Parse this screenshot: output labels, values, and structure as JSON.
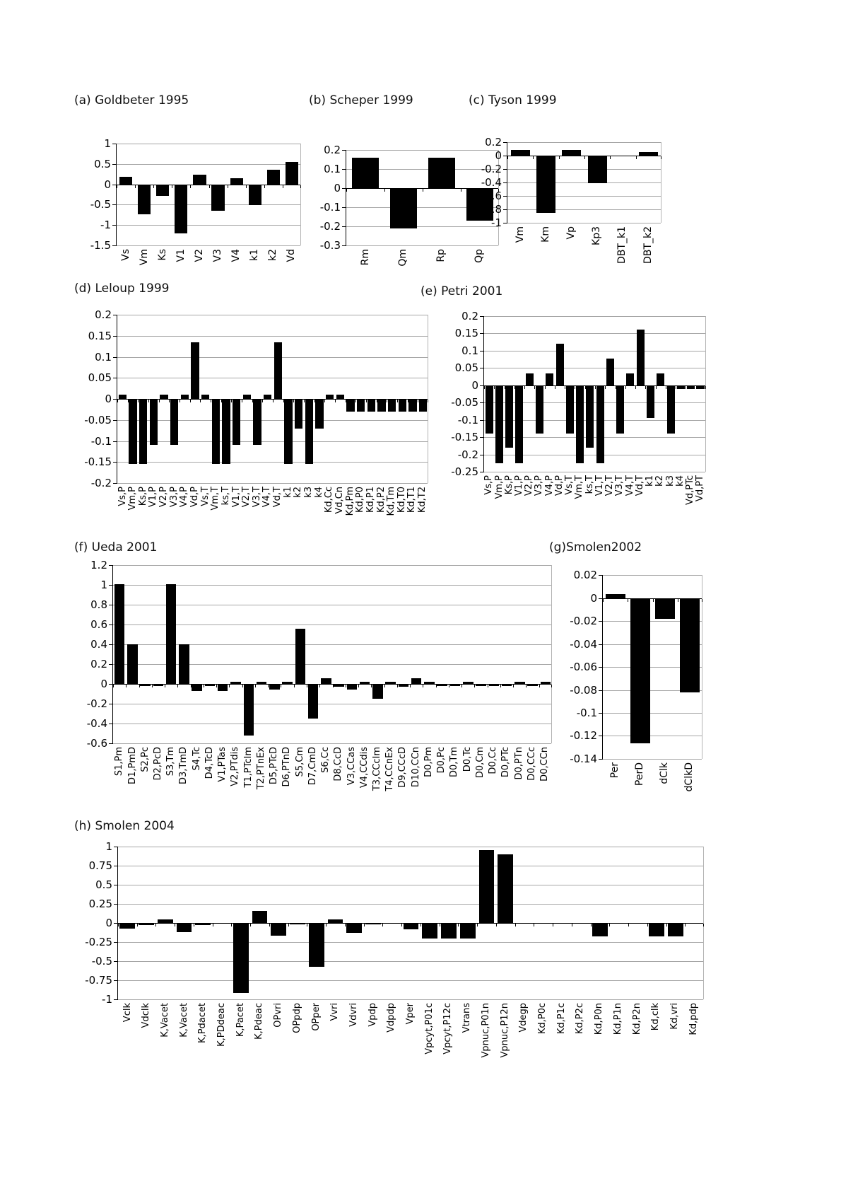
{
  "colors": {
    "bar": "#000000",
    "gridline": "#a6a6a6",
    "axis": "#000000",
    "background": "#ffffff",
    "text": "#000000"
  },
  "chart_data": [
    {
      "panel": "a",
      "type": "bar",
      "title": "(a) Goldbeter 1995",
      "categories": [
        "Vs",
        "Vm",
        "Ks",
        "V1",
        "V2",
        "V3",
        "V4",
        "k1",
        "k2",
        "Vd"
      ],
      "values": [
        0.2,
        -0.72,
        -0.28,
        -1.2,
        0.24,
        -0.65,
        0.16,
        -0.5,
        0.37,
        0.55
      ],
      "yticks": [
        "1",
        "0.5",
        "0",
        "-0.5",
        "-1",
        "-1.5"
      ],
      "ylim": [
        -1.5,
        1
      ],
      "grid": true
    },
    {
      "panel": "b",
      "type": "bar",
      "title": "(b) Scheper 1999",
      "categories": [
        "Rm",
        "Qm",
        "Rp",
        "Qp"
      ],
      "values": [
        0.16,
        -0.21,
        0.16,
        -0.17
      ],
      "yticks": [
        "0.2",
        "0.1",
        "0",
        "-0.1",
        "-0.2",
        "-0.3"
      ],
      "ylim": [
        -0.3,
        0.2
      ],
      "grid": true
    },
    {
      "panel": "c",
      "type": "bar",
      "title": "(c) Tyson 1999",
      "categories": [
        "Vm",
        "Km",
        "Vp",
        "Kp3",
        "DBT_k1",
        "DBT_k2"
      ],
      "values": [
        0.08,
        -0.85,
        0.08,
        -0.41,
        0,
        0.05
      ],
      "yticks": [
        "0.2",
        "0",
        "-0.2",
        "-0.4",
        "-0.6",
        "-0.8",
        "-1"
      ],
      "ylim": [
        -1,
        0.2
      ],
      "grid": true
    },
    {
      "panel": "d",
      "type": "bar",
      "title": "(d) Leloup 1999",
      "categories": [
        "Vs,P",
        "Vm,P",
        "Ks,P",
        "V1,P",
        "V2,P",
        "V3,P",
        "V4,P",
        "Vd,P",
        "Vs,T",
        "Vm,T",
        "ks,T",
        "V1,T",
        "V2,T",
        "V3,T",
        "V4,T",
        "Vd,T",
        "k1",
        "k2",
        "k3",
        "k4",
        "Kd,Cc",
        "Vd,Cn",
        "Kd,Pm",
        "Kd,P0",
        "Kd,P1",
        "Kd,P2",
        "Kd,Tm",
        "Kd,T0",
        "Kd,T1",
        "Kd,T2"
      ],
      "values": [
        0.01,
        -0.155,
        -0.155,
        -0.11,
        0.01,
        -0.11,
        0.01,
        0.135,
        0.01,
        -0.155,
        -0.155,
        -0.11,
        0.01,
        -0.11,
        0.01,
        0.135,
        -0.155,
        -0.07,
        -0.155,
        -0.07,
        0.01,
        0.01,
        -0.03,
        -0.03,
        -0.03,
        -0.03,
        -0.03,
        -0.03,
        -0.03,
        -0.03
      ],
      "yticks": [
        "0.2",
        "0.15",
        "0.1",
        "0.05",
        "0",
        "-0.05",
        "-0.1",
        "-0.15",
        "-0.2"
      ],
      "ylim": [
        -0.2,
        0.2
      ],
      "grid": true
    },
    {
      "panel": "e",
      "type": "bar",
      "title": "(e) Petri 2001",
      "categories": [
        "Vs,P",
        "Vm,P",
        "Ks,P",
        "V1,P",
        "V2,P",
        "V3,P",
        "V4,P",
        "Vd,P",
        "Vs,T",
        "Vm,T",
        "ks,T",
        "V1,T",
        "V2,T",
        "V3,T",
        "V4,T",
        "Vd,T",
        "k1",
        "k2",
        "k3",
        "k4",
        "Vd,PTc",
        "Vd,PT"
      ],
      "values": [
        -0.14,
        -0.225,
        -0.18,
        -0.225,
        0.035,
        -0.14,
        0.035,
        0.12,
        -0.14,
        -0.225,
        -0.18,
        -0.225,
        0.077,
        -0.14,
        0.035,
        0.162,
        -0.095,
        0.035,
        -0.14,
        -0.01,
        -0.01,
        -0.01
      ],
      "yticks": [
        "0.2",
        "0.15",
        "0.1",
        "0.05",
        "0",
        "-0.05",
        "-0.1",
        "-0.15",
        "-0.2",
        "-0.25"
      ],
      "ylim": [
        -0.25,
        0.2
      ],
      "grid": true
    },
    {
      "panel": "f",
      "type": "bar",
      "title": "(f) Ueda 2001",
      "categories": [
        "S1,Pm",
        "D1,PmD",
        "S2,Pc",
        "D2,PcD",
        "S3,Tm",
        "D3,TmD",
        "S4,Tc",
        "D4,TcD",
        "V1,PTas",
        "V2,PTdis",
        "T1,PTcIm",
        "T2,PTnEx",
        "D5,PTcD",
        "D6,PTnD",
        "S5,Cm",
        "D7,CmD",
        "S6,Cc",
        "D8,CcD",
        "V3,CCas",
        "V4,CCdis",
        "T3,CCcIm",
        "T4,CCnEx",
        "D9,CCcD",
        "D10,CCn",
        "D0,Pm",
        "D0,Pc",
        "D0,Tm",
        "D0,Tc",
        "D0,Cm",
        "D0,Cc",
        "D0,PTc",
        "D0,PTn",
        "D0,CCc",
        "D0,CCn"
      ],
      "values": [
        1.01,
        0.4,
        -0.02,
        -0.02,
        1.01,
        0.4,
        -0.07,
        -0.02,
        -0.07,
        0.02,
        -0.52,
        0.02,
        -0.06,
        0.02,
        0.56,
        -0.35,
        0.06,
        -0.03,
        -0.06,
        0.02,
        -0.15,
        0.02,
        -0.03,
        0.06,
        0.02,
        -0.02,
        -0.02,
        0.02,
        -0.02,
        -0.02,
        -0.02,
        0.02,
        -0.02,
        0.02
      ],
      "yticks": [
        "1.2",
        "1",
        "0.8",
        "0.6",
        "0.4",
        "0.2",
        "0",
        "-0.2",
        "-0.4",
        "-0.6"
      ],
      "ylim": [
        -0.6,
        1.2
      ],
      "grid": true
    },
    {
      "panel": "g",
      "type": "bar",
      "title": "(g)Smolen2002",
      "categories": [
        "Per",
        "PerD",
        "dClk",
        "dClkD"
      ],
      "values": [
        0.004,
        -0.126,
        -0.018,
        -0.082
      ],
      "yticks": [
        "0.02",
        "0",
        "-0.02",
        "-0.04",
        "-0.06",
        "-0.08",
        "-0.1",
        "-0.12",
        "-0.14"
      ],
      "ylim": [
        -0.14,
        0.02
      ],
      "grid": true
    },
    {
      "panel": "h",
      "type": "bar",
      "title": "(h) Smolen 2004",
      "categories": [
        "Vclk",
        "Vdclk",
        "K,Vacet",
        "K,Vacet",
        "K,Pdacet",
        "K,PDdeac",
        "K,Pacet",
        "K,Pdeac",
        "OPvri",
        "OPpdp",
        "OPper",
        "Vvri",
        "Vdvri",
        "Vpdp",
        "Vdpdp",
        "Vper",
        "Vpcyt,P01c",
        "Vpcyt,P12c",
        "Vtrans",
        "Vpnuc,P01n",
        "Vpnuc,P12n",
        "Vdegp",
        "Kd,P0c",
        "Kd,P1c",
        "Kd,P2c",
        "Kd,P0n",
        "Kd,P1n",
        "Kd,P2n",
        "Kd,clk",
        "Kd,vri",
        "Kd,pdp"
      ],
      "values": [
        -0.07,
        -0.03,
        0.05,
        -0.12,
        -0.03,
        -0.01,
        -0.92,
        0.16,
        -0.17,
        -0.02,
        -0.57,
        0.05,
        -0.13,
        -0.02,
        -0.01,
        -0.08,
        -0.2,
        -0.2,
        -0.2,
        0.95,
        0.9,
        0,
        0,
        0,
        0,
        -0.18,
        0,
        0,
        -0.18,
        -0.18,
        0
      ],
      "yticks": [
        "1",
        "0.75",
        "0.5",
        "0.25",
        "0",
        "-0.25",
        "-0.5",
        "-0.75",
        "-1"
      ],
      "ylim": [
        -1,
        1
      ],
      "grid": true
    }
  ]
}
